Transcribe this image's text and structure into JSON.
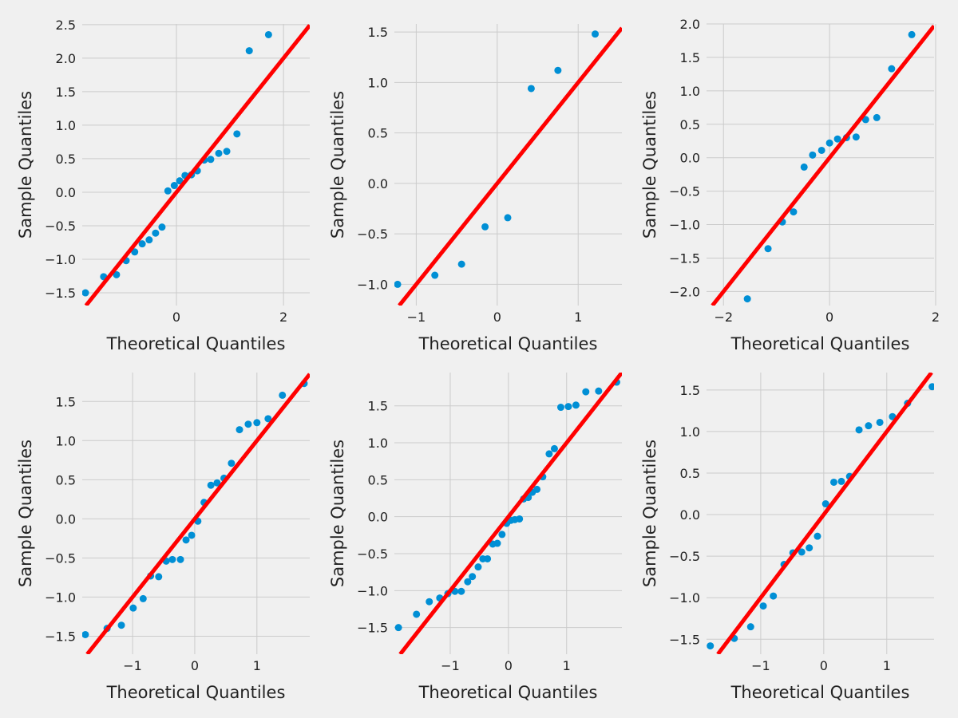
{
  "chart_data": [
    {
      "type": "scatter",
      "xlabel": "Theoretical Quantiles",
      "ylabel": "Sample Quantiles",
      "color": "#008fd5",
      "reference_line_color": "#ff0000",
      "grid": true,
      "x": [
        -1.7,
        -1.36,
        -1.12,
        -0.94,
        -0.78,
        -0.64,
        -0.51,
        -0.39,
        -0.27,
        -0.16,
        -0.04,
        0.06,
        0.16,
        0.28,
        0.39,
        0.52,
        0.64,
        0.79,
        0.94,
        1.13,
        1.36,
        1.72
      ],
      "values": [
        -1.5,
        -1.26,
        -1.23,
        -1.02,
        -0.89,
        -0.77,
        -0.71,
        -0.61,
        -0.52,
        0.02,
        0.1,
        0.17,
        0.25,
        0.26,
        0.32,
        0.48,
        0.49,
        0.58,
        0.61,
        0.87,
        2.11,
        2.35
      ],
      "xlim": [
        -1.76,
        2.49
      ],
      "ylim": [
        -1.69,
        2.51
      ],
      "xticks": [
        0,
        2
      ],
      "yticks": [
        2.5,
        {
          "value": 2,
          "label": "2.0"
        },
        1.5,
        {
          "value": 1,
          "label": "1.0"
        },
        0.5,
        {
          "value": 0,
          "label": "0.0"
        },
        {
          "value": -0.5,
          "label": "−0.5"
        },
        {
          "value": -1,
          "label": "−1.0"
        },
        {
          "value": -1.5,
          "label": "−1.5"
        }
      ]
    },
    {
      "type": "scatter",
      "xlabel": "Theoretical Quantiles",
      "ylabel": "Sample Quantiles",
      "color": "#008fd5",
      "reference_line_color": "#ff0000",
      "grid": true,
      "x": [
        -1.23,
        -0.77,
        -0.44,
        -0.15,
        0.13,
        0.42,
        0.75,
        1.21
      ],
      "values": [
        -1.0,
        -0.91,
        -0.8,
        -0.43,
        -0.34,
        0.94,
        1.12,
        1.48
      ],
      "xlim": [
        -1.27,
        1.54
      ],
      "ylim": [
        -1.21,
        1.58
      ],
      "xticks": [
        {
          "value": -1,
          "label": "−1"
        },
        0,
        1
      ],
      "yticks": [
        1.5,
        {
          "value": 1,
          "label": "1.0"
        },
        0.5,
        {
          "value": 0,
          "label": "0.0"
        },
        {
          "value": -0.5,
          "label": "−0.5"
        },
        {
          "value": -1,
          "label": "−1.0"
        }
      ]
    },
    {
      "type": "scatter",
      "xlabel": "Theoretical Quantiles",
      "ylabel": "Sample Quantiles",
      "color": "#008fd5",
      "reference_line_color": "#ff0000",
      "grid": true,
      "x": [
        -1.55,
        -1.16,
        -0.89,
        -0.68,
        -0.48,
        -0.32,
        -0.15,
        0,
        0.15,
        0.32,
        0.5,
        0.68,
        0.89,
        1.17,
        1.55
      ],
      "values": [
        -2.11,
        -1.36,
        -0.96,
        -0.81,
        -0.14,
        0.04,
        0.11,
        0.22,
        0.28,
        0.3,
        0.31,
        0.57,
        0.6,
        1.33,
        1.84
      ],
      "xlim": [
        -2.32,
        1.97
      ],
      "ylim": [
        -2.21,
        2.0
      ],
      "xticks": [
        {
          "value": -2,
          "label": "−2"
        },
        0,
        2
      ],
      "yticks": [
        {
          "value": 2,
          "label": "2.0"
        },
        1.5,
        {
          "value": 1,
          "label": "1.0"
        },
        0.5,
        {
          "value": 0,
          "label": "0.0"
        },
        {
          "value": -0.5,
          "label": "−0.5"
        },
        {
          "value": -1,
          "label": "−1.0"
        },
        {
          "value": -1.5,
          "label": "−1.5"
        },
        {
          "value": -2,
          "label": "−2.0"
        }
      ]
    },
    {
      "type": "scatter",
      "xlabel": "Theoretical Quantiles",
      "ylabel": "Sample Quantiles",
      "color": "#008fd5",
      "reference_line_color": "#ff0000",
      "grid": true,
      "x": [
        -1.76,
        -1.41,
        -1.18,
        -0.99,
        -0.83,
        -0.71,
        -0.58,
        -0.46,
        -0.36,
        -0.23,
        -0.14,
        -0.05,
        0.05,
        0.15,
        0.26,
        0.36,
        0.47,
        0.59,
        0.72,
        0.86,
        1.0,
        1.18,
        1.41,
        1.76
      ],
      "values": [
        -1.48,
        -1.4,
        -1.36,
        -1.14,
        -1.02,
        -0.73,
        -0.74,
        -0.54,
        -0.52,
        -0.52,
        -0.27,
        -0.21,
        -0.03,
        0.21,
        0.43,
        0.46,
        0.52,
        0.71,
        1.14,
        1.21,
        1.23,
        1.28,
        1.58,
        1.73
      ],
      "xlim": [
        -1.81,
        1.85
      ],
      "ylim": [
        -1.73,
        1.87
      ],
      "xticks": [
        {
          "value": -1,
          "label": "−1"
        },
        0,
        1
      ],
      "yticks": [
        1.5,
        {
          "value": 1,
          "label": "1.0"
        },
        0.5,
        {
          "value": 0,
          "label": "0.0"
        },
        {
          "value": -0.5,
          "label": "−0.5"
        },
        {
          "value": -1,
          "label": "−1.0"
        },
        {
          "value": -1.5,
          "label": "−1.5"
        }
      ]
    },
    {
      "type": "scatter",
      "xlabel": "Theoretical Quantiles",
      "ylabel": "Sample Quantiles",
      "color": "#008fd5",
      "reference_line_color": "#ff0000",
      "grid": true,
      "x": [
        -1.89,
        -1.58,
        -1.36,
        -1.18,
        -1.04,
        -0.92,
        -0.81,
        -0.7,
        -0.62,
        -0.52,
        -0.44,
        -0.36,
        -0.27,
        -0.19,
        -0.11,
        -0.03,
        0.04,
        0.11,
        0.19,
        0.26,
        0.34,
        0.41,
        0.49,
        0.59,
        0.7,
        0.79,
        0.9,
        1.03,
        1.16,
        1.33,
        1.55,
        1.86
      ],
      "values": [
        -1.5,
        -1.32,
        -1.15,
        -1.1,
        -1.04,
        -1.01,
        -1.01,
        -0.88,
        -0.81,
        -0.68,
        -0.57,
        -0.57,
        -0.37,
        -0.36,
        -0.24,
        -0.09,
        -0.05,
        -0.04,
        -0.03,
        0.24,
        0.26,
        0.33,
        0.37,
        0.54,
        0.85,
        0.92,
        1.48,
        1.49,
        1.51,
        1.69,
        1.7,
        1.82
      ],
      "xlim": [
        -1.96,
        1.95
      ],
      "ylim": [
        -1.86,
        1.95
      ],
      "xticks": [
        {
          "value": -1,
          "label": "−1"
        },
        0,
        1
      ],
      "yticks": [
        1.5,
        {
          "value": 1,
          "label": "1.0"
        },
        0.5,
        {
          "value": 0,
          "label": "0.0"
        },
        {
          "value": -0.5,
          "label": "−0.5"
        },
        {
          "value": -1,
          "label": "−1.0"
        },
        {
          "value": -1.5,
          "label": "−1.5"
        }
      ]
    },
    {
      "type": "scatter",
      "xlabel": "Theoretical Quantiles",
      "ylabel": "Sample Quantiles",
      "color": "#008fd5",
      "reference_line_color": "#ff0000",
      "grid": true,
      "x": [
        -1.8,
        -1.42,
        -1.16,
        -0.96,
        -0.8,
        -0.63,
        -0.49,
        -0.35,
        -0.23,
        -0.1,
        0.03,
        0.16,
        0.28,
        0.41,
        0.56,
        0.71,
        0.89,
        1.09,
        1.33,
        1.72
      ],
      "values": [
        -1.58,
        -1.49,
        -1.35,
        -1.1,
        -0.98,
        -0.6,
        -0.46,
        -0.45,
        -0.4,
        -0.26,
        0.13,
        0.39,
        0.4,
        0.46,
        1.02,
        1.07,
        1.11,
        1.18,
        1.34,
        1.54
      ],
      "xlim": [
        -1.86,
        1.75
      ],
      "ylim": [
        -1.68,
        1.71
      ],
      "xticks": [
        {
          "value": -1,
          "label": "−1"
        },
        0,
        1
      ],
      "yticks": [
        1.5,
        {
          "value": 1,
          "label": "1.0"
        },
        0.5,
        {
          "value": 0,
          "label": "0.0"
        },
        {
          "value": -0.5,
          "label": "−0.5"
        },
        {
          "value": -1,
          "label": "−1.0"
        },
        {
          "value": -1.5,
          "label": "−1.5"
        }
      ]
    }
  ]
}
